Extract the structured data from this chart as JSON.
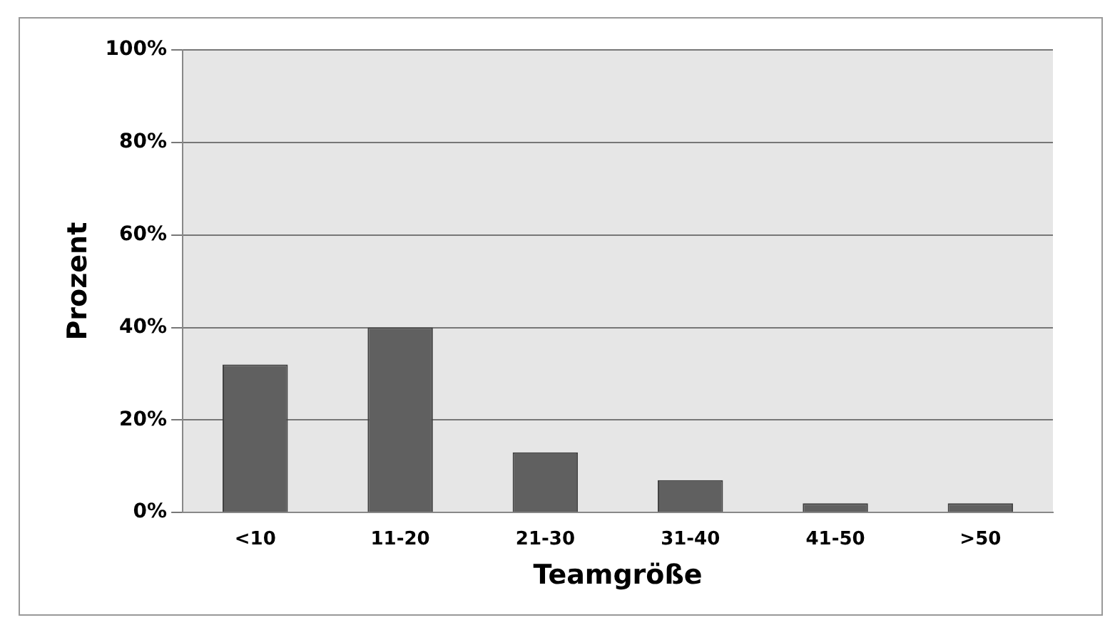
{
  "chart_data": {
    "type": "bar",
    "xlabel": "Teamgröße",
    "ylabel": "Prozent",
    "categories": [
      "<10",
      "11-20",
      "21-30",
      "31-40",
      "41-50",
      ">50"
    ],
    "values": [
      32,
      40,
      13,
      7,
      2,
      2
    ],
    "color": "#606060",
    "ylim": [
      0,
      100
    ],
    "yticks": [
      {
        "value": 0,
        "label": "0%"
      },
      {
        "value": 20,
        "label": "20%"
      },
      {
        "value": 40,
        "label": "40%"
      },
      {
        "value": 60,
        "label": "60%"
      },
      {
        "value": 80,
        "label": "80%"
      },
      {
        "value": 100,
        "label": "100%"
      }
    ],
    "grid": "y",
    "legend": false
  }
}
